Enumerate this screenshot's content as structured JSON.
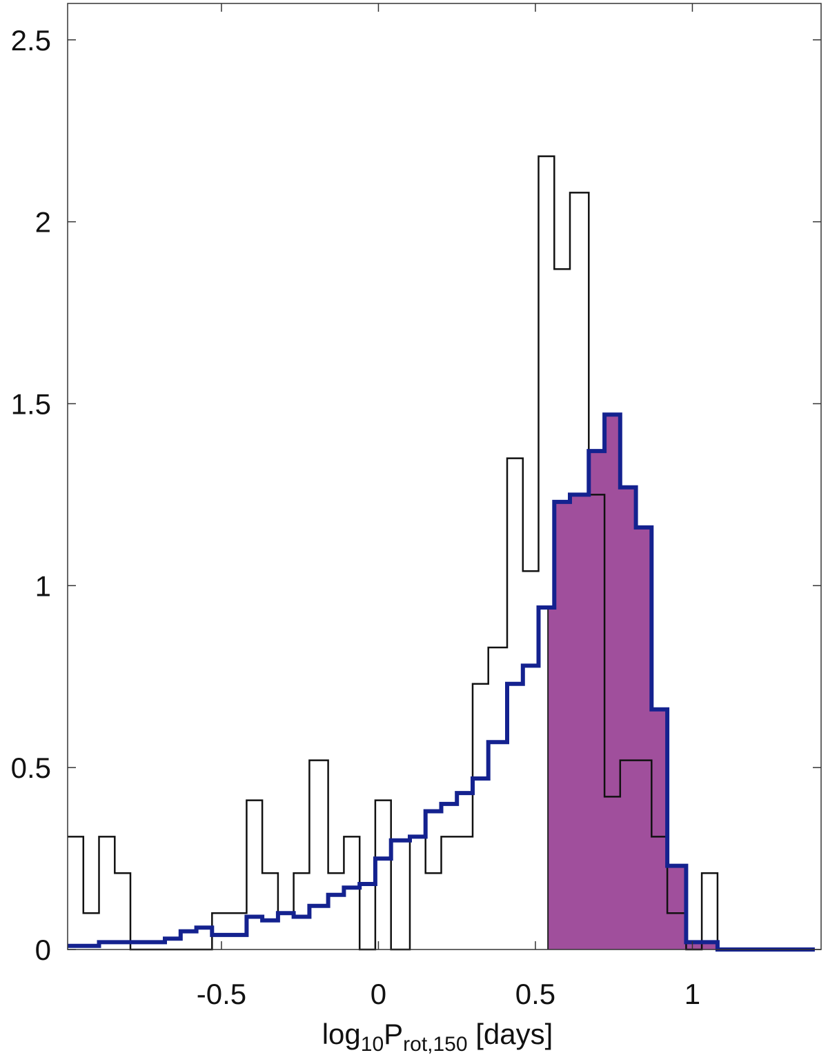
{
  "chart_data": {
    "type": "histogram",
    "xlabel": {
      "base": "log",
      "base_sub": "10",
      "main": "P",
      "main_sub": "rot,150",
      "unit": " [days]"
    },
    "ylabel": "",
    "title": "",
    "xlim": [
      -0.99,
      1.41
    ],
    "ylim": [
      0,
      2.6
    ],
    "xticks": [
      {
        "value": -0.5,
        "label": "-0.5"
      },
      {
        "value": 0,
        "label": "0"
      },
      {
        "value": 0.5,
        "label": "0.5"
      },
      {
        "value": 1,
        "label": "1"
      }
    ],
    "yticks": [
      {
        "value": 0,
        "label": "0"
      },
      {
        "value": 0.5,
        "label": "0.5"
      },
      {
        "value": 1,
        "label": "1"
      },
      {
        "value": 1.5,
        "label": "1.5"
      },
      {
        "value": 2,
        "label": "2"
      },
      {
        "value": 2.5,
        "label": "2.5"
      }
    ],
    "grid": false,
    "series": [
      {
        "style": "thin-black-step",
        "color": "#111111",
        "bin_edges": [
          -0.99,
          -0.94,
          -0.89,
          -0.84,
          -0.79,
          -0.73,
          -0.68,
          -0.63,
          -0.58,
          -0.53,
          -0.47,
          -0.42,
          -0.37,
          -0.32,
          -0.27,
          -0.22,
          -0.16,
          -0.11,
          -0.06,
          -0.01,
          0.04,
          0.1,
          0.15,
          0.2,
          0.25,
          0.3,
          0.35,
          0.41,
          0.46,
          0.51,
          0.56,
          0.61,
          0.67,
          0.72,
          0.77,
          0.82,
          0.87,
          0.92,
          0.98,
          1.03,
          1.08,
          1.13
        ],
        "values": [
          0.31,
          0.1,
          0.31,
          0.21,
          0.0,
          0.0,
          0.0,
          0.0,
          0.0,
          0.1,
          0.1,
          0.41,
          0.21,
          0.1,
          0.21,
          0.52,
          0.21,
          0.31,
          0.0,
          0.41,
          0.0,
          0.31,
          0.21,
          0.31,
          0.31,
          0.73,
          0.83,
          1.35,
          1.04,
          2.18,
          1.87,
          2.08,
          1.25,
          0.42,
          0.52,
          0.52,
          0.31,
          0.1,
          0.0,
          0.21,
          0.0
        ]
      },
      {
        "style": "thick-navy-step",
        "color": "#14228f",
        "bin_edges": [
          -0.99,
          -0.94,
          -0.89,
          -0.84,
          -0.79,
          -0.73,
          -0.68,
          -0.63,
          -0.58,
          -0.53,
          -0.47,
          -0.42,
          -0.37,
          -0.32,
          -0.27,
          -0.22,
          -0.16,
          -0.11,
          -0.06,
          -0.01,
          0.04,
          0.1,
          0.15,
          0.2,
          0.25,
          0.3,
          0.35,
          0.41,
          0.46,
          0.51,
          0.56,
          0.61,
          0.67,
          0.72,
          0.77,
          0.82,
          0.87,
          0.92,
          0.98,
          1.03,
          1.08,
          1.13,
          1.18,
          1.24,
          1.29,
          1.34,
          1.39
        ],
        "values": [
          0.01,
          0.01,
          0.02,
          0.02,
          0.02,
          0.02,
          0.03,
          0.05,
          0.06,
          0.04,
          0.04,
          0.09,
          0.08,
          0.1,
          0.09,
          0.12,
          0.15,
          0.17,
          0.18,
          0.25,
          0.3,
          0.31,
          0.38,
          0.4,
          0.43,
          0.47,
          0.57,
          0.73,
          0.78,
          0.94,
          1.23,
          1.25,
          1.37,
          1.47,
          1.27,
          1.16,
          0.66,
          0.23,
          0.02,
          0.02,
          0.0,
          0.0,
          0.0,
          0.0,
          0.0,
          0.0
        ]
      },
      {
        "style": "filled-region",
        "color": "#a04f9c",
        "x_from": 0.54,
        "x_to": 1.16,
        "follows_series": 1
      }
    ]
  }
}
